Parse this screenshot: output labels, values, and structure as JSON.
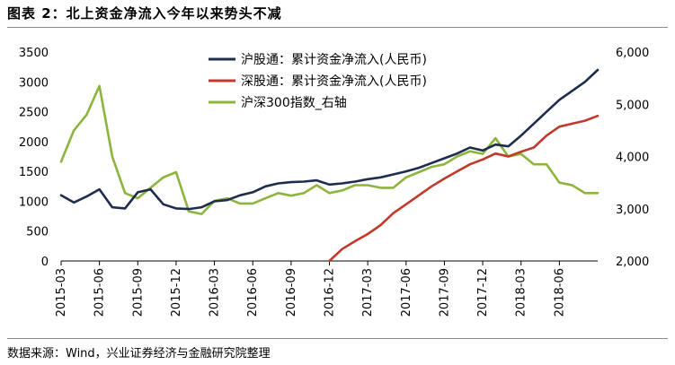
{
  "figure": {
    "title": "图表 2：北上资金净流入今年以来势头不减",
    "source": "数据来源：Wind，兴业证券经济与金融研究院整理"
  },
  "chart_data": {
    "type": "line",
    "x_tick_labels": [
      "2015-03",
      "2015-06",
      "2015-09",
      "2015-12",
      "2016-03",
      "2016-06",
      "2016-09",
      "2016-12",
      "2017-03",
      "2017-06",
      "2017-09",
      "2017-12",
      "2018-03",
      "2018-06"
    ],
    "x_range": [
      "2015-03",
      "2018-09"
    ],
    "y_left": {
      "range": [
        0,
        3500
      ],
      "ticks": [
        0,
        500,
        1000,
        1500,
        2000,
        2500,
        3000,
        3500
      ]
    },
    "y_right": {
      "range": [
        2000,
        6000
      ],
      "ticks": [
        "2,000",
        "3,000",
        "4,000",
        "5,000",
        "6,000"
      ]
    },
    "grid": false,
    "legend_position": "top-center",
    "series": [
      {
        "name": "沪股通：累计资金净流入(人民币)",
        "axis": "left",
        "color": "#1f2d4d",
        "x": [
          "2015-03",
          "2015-04",
          "2015-05",
          "2015-06",
          "2015-07",
          "2015-08",
          "2015-09",
          "2015-10",
          "2015-11",
          "2015-12",
          "2016-01",
          "2016-02",
          "2016-03",
          "2016-04",
          "2016-05",
          "2016-06",
          "2016-07",
          "2016-08",
          "2016-09",
          "2016-10",
          "2016-11",
          "2016-12",
          "2017-01",
          "2017-02",
          "2017-03",
          "2017-04",
          "2017-05",
          "2017-06",
          "2017-07",
          "2017-08",
          "2017-09",
          "2017-10",
          "2017-11",
          "2017-12",
          "2018-01",
          "2018-02",
          "2018-03",
          "2018-04",
          "2018-05",
          "2018-06",
          "2018-07",
          "2018-08",
          "2018-09"
        ],
        "values": [
          1100,
          980,
          1080,
          1200,
          900,
          880,
          1150,
          1200,
          950,
          880,
          870,
          900,
          1000,
          1020,
          1100,
          1150,
          1250,
          1300,
          1320,
          1330,
          1350,
          1280,
          1300,
          1330,
          1370,
          1400,
          1450,
          1500,
          1560,
          1640,
          1720,
          1800,
          1900,
          1850,
          1950,
          1920,
          2100,
          2300,
          2500,
          2700,
          2850,
          3000,
          3200
        ]
      },
      {
        "name": "深股通：累计资金净流入(人民币)",
        "axis": "left",
        "color": "#c0392b",
        "x": [
          "2016-12",
          "2017-01",
          "2017-02",
          "2017-03",
          "2017-04",
          "2017-05",
          "2017-06",
          "2017-07",
          "2017-08",
          "2017-09",
          "2017-10",
          "2017-11",
          "2017-12",
          "2018-01",
          "2018-02",
          "2018-03",
          "2018-04",
          "2018-05",
          "2018-06",
          "2018-07",
          "2018-08",
          "2018-09"
        ],
        "values": [
          0,
          200,
          330,
          450,
          600,
          800,
          950,
          1100,
          1250,
          1380,
          1500,
          1620,
          1700,
          1800,
          1750,
          1830,
          1900,
          2100,
          2250,
          2300,
          2350,
          2430
        ]
      },
      {
        "name": "沪深300指数_右轴",
        "axis": "right",
        "color": "#8db43c",
        "x": [
          "2015-03",
          "2015-04",
          "2015-05",
          "2015-06",
          "2015-07",
          "2015-08",
          "2015-09",
          "2015-10",
          "2015-11",
          "2015-12",
          "2016-01",
          "2016-02",
          "2016-03",
          "2016-04",
          "2016-05",
          "2016-06",
          "2016-07",
          "2016-08",
          "2016-09",
          "2016-10",
          "2016-11",
          "2016-12",
          "2017-01",
          "2017-02",
          "2017-03",
          "2017-04",
          "2017-05",
          "2017-06",
          "2017-07",
          "2017-08",
          "2017-09",
          "2017-10",
          "2017-11",
          "2017-12",
          "2018-01",
          "2018-02",
          "2018-03",
          "2018-04",
          "2018-05",
          "2018-06",
          "2018-07",
          "2018-08",
          "2018-09"
        ],
        "values": [
          3900,
          4500,
          4800,
          5350,
          4000,
          3300,
          3200,
          3400,
          3600,
          3700,
          2950,
          2900,
          3150,
          3200,
          3100,
          3100,
          3200,
          3300,
          3250,
          3300,
          3450,
          3300,
          3350,
          3450,
          3450,
          3400,
          3400,
          3600,
          3700,
          3800,
          3850,
          4000,
          4100,
          4050,
          4350,
          4000,
          4050,
          3850,
          3850,
          3500,
          3450,
          3300,
          3300
        ]
      }
    ]
  }
}
